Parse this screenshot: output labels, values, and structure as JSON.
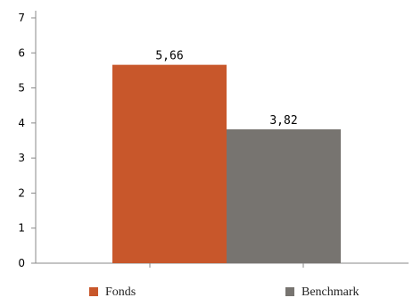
{
  "chart_data": {
    "type": "bar",
    "categories": [
      ""
    ],
    "series": [
      {
        "name": "Fonds",
        "values": [
          5.66
        ],
        "value_label": "5,66",
        "color": "#C8572B"
      },
      {
        "name": "Benchmark",
        "values": [
          3.82
        ],
        "value_label": "3,82",
        "color": "#777470"
      }
    ],
    "ylim": [
      0,
      7
    ],
    "yticks": [
      "0",
      "1",
      "2",
      "3",
      "4",
      "5",
      "6",
      "7"
    ],
    "grid": false,
    "legend_position": "bottom"
  }
}
